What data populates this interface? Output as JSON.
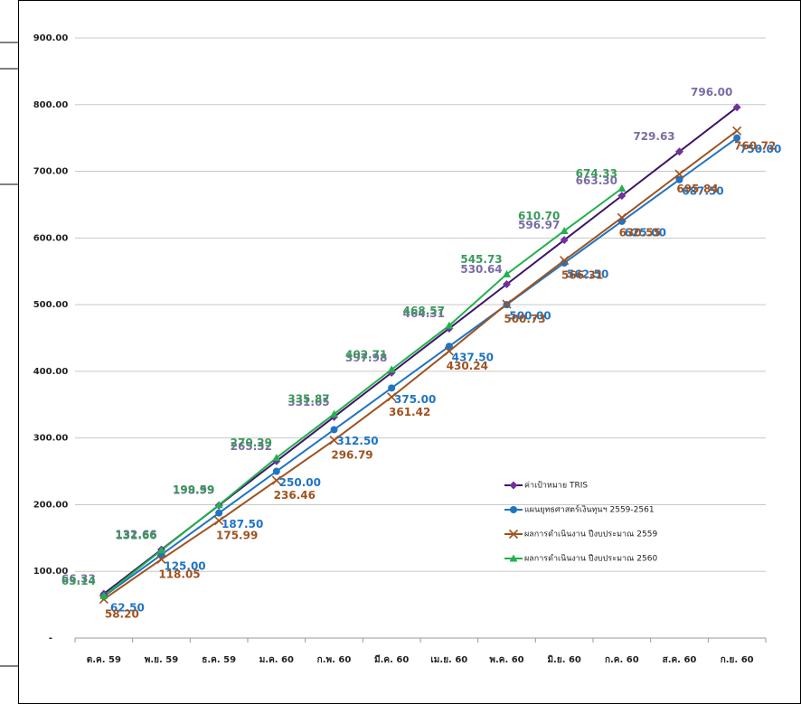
{
  "chart_data": {
    "type": "line",
    "categories": [
      "ต.ค. 59",
      "พ.ย. 59",
      "ธ.ค. 59",
      "ม.ค. 60",
      "ก.พ. 60",
      "มี.ค. 60",
      "เม.ย. 60",
      "พ.ค. 60",
      "มิ.ย. 60",
      "ก.ค. 60",
      "ส.ค. 60",
      "ก.ย. 60"
    ],
    "ylim": [
      0,
      900
    ],
    "yticks": [
      {
        "value": 0,
        "label": "-"
      },
      {
        "value": 100,
        "label": "100.00"
      },
      {
        "value": 200,
        "label": "200.00"
      },
      {
        "value": 300,
        "label": "300.00"
      },
      {
        "value": 400,
        "label": "400.00"
      },
      {
        "value": 500,
        "label": "500.00"
      },
      {
        "value": 600,
        "label": "600.00"
      },
      {
        "value": 700,
        "label": "700.00"
      },
      {
        "value": 800,
        "label": "800.00"
      },
      {
        "value": 900,
        "label": "900.00"
      }
    ],
    "grid": true,
    "legend": "right",
    "series": [
      {
        "name": "ค่าเป้าหมาย TRIS",
        "color": "#3d1466",
        "marker_color": "#7030a0",
        "label_color": "#7b6ca6",
        "marker": "diamond",
        "values": [
          66.33,
          132.66,
          198.99,
          265.32,
          331.65,
          397.98,
          464.31,
          530.64,
          596.97,
          663.3,
          729.63,
          796
        ],
        "value_labels": [
          "66.33",
          "132.66",
          "198.99",
          "265.32",
          "331.65",
          "397.98",
          "464.31",
          "530.64",
          "596.97",
          "663.30",
          "729.63",
          "796.00"
        ]
      },
      {
        "name": "แผนยุทธศาสตร์เงินทุนฯ 2559-2561",
        "color": "#1f74c4",
        "marker_color": "#1f74c4",
        "label_color": "#1f74c4",
        "marker": "circle",
        "values": [
          62.5,
          125,
          187.5,
          250,
          312.5,
          375,
          437.5,
          500,
          562.5,
          625,
          687.5,
          750
        ],
        "value_labels": [
          "62.50",
          "125.00",
          "187.50",
          "250.00",
          "312.50",
          "375.00",
          "437.50",
          "500.00",
          "562.50",
          "625.00",
          "687.50",
          "750.00"
        ]
      },
      {
        "name": "ผลการดำเนินงาน ปีงบประมาณ 2559",
        "color": "#a0521e",
        "marker_color": "#a0521e",
        "label_color": "#a0521e",
        "marker": "x",
        "values": [
          58.2,
          118.05,
          175.99,
          236.46,
          296.79,
          361.42,
          430.24,
          500.73,
          566.31,
          630.55,
          695.84,
          760.72
        ],
        "value_labels": [
          "58.20",
          "118.05",
          "175.99",
          "236.46",
          "296.79",
          "361.42",
          "430.24",
          "500.73",
          "566.31",
          "630.55",
          "695.84",
          "760.72"
        ]
      },
      {
        "name": "ผลการดำเนินงาน ปีงบประมาณ 2560",
        "color": "#22b14c",
        "marker_color": "#22b14c",
        "label_color": "#3a9a5a",
        "marker": "triangle",
        "values": [
          63.14,
          131.66,
          199.59,
          270.29,
          335.87,
          402.71,
          468.57,
          545.73,
          610.7,
          674.33,
          null,
          null
        ],
        "value_labels": [
          "63.14",
          "131.66",
          "199.59",
          "270.29",
          "335.87",
          "402.71",
          "468.57",
          "545.73",
          "610.70",
          "674.33",
          null,
          null
        ]
      }
    ]
  }
}
